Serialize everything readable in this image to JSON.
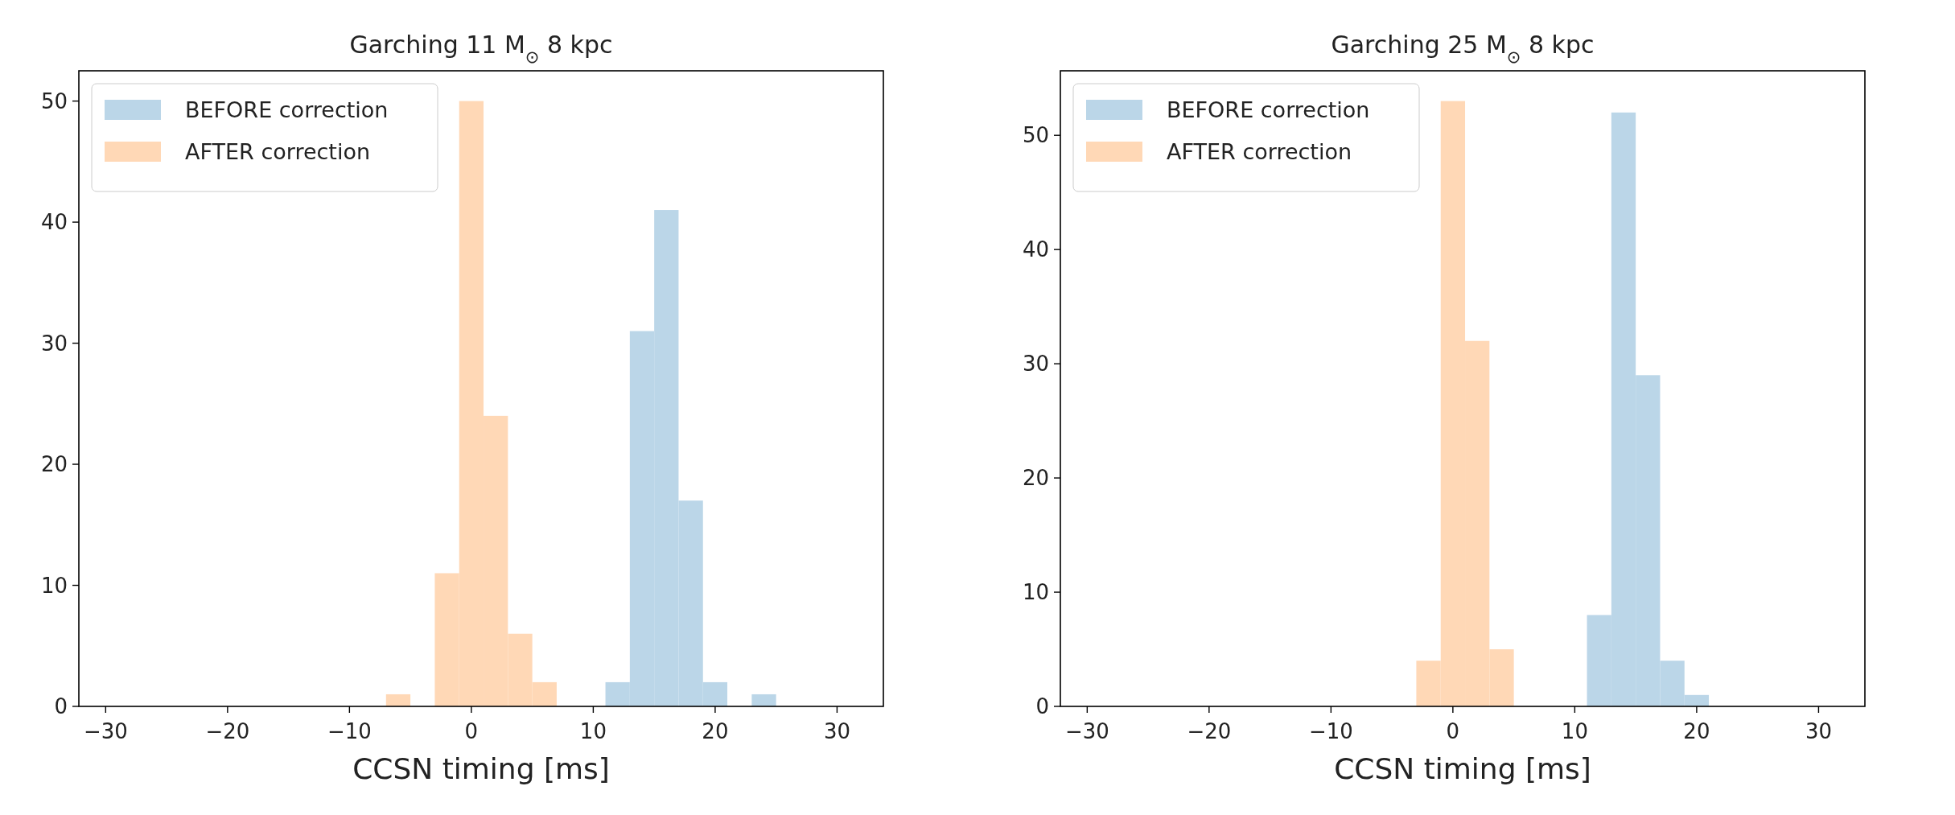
{
  "chart_data": [
    {
      "type": "histogram",
      "title": "Garching 11 M$_{⊙}$ 8 kpc",
      "xlabel": "CCSN timing [ms]",
      "xlim": [
        -32.2,
        33.8
      ],
      "xticks": [
        {
          "value": -30,
          "label": "−30"
        },
        {
          "value": -20,
          "label": "−20"
        },
        {
          "value": -10,
          "label": "−10"
        },
        0,
        10,
        20,
        30
      ],
      "ylim": [
        0,
        52.5
      ],
      "yticks": [
        0,
        10,
        20,
        30,
        40,
        50
      ],
      "legend": "top left",
      "bins": [
        -7,
        -5,
        -3,
        -1,
        1,
        3,
        5,
        7,
        9,
        11,
        13,
        15,
        17,
        19,
        21,
        23,
        25
      ],
      "series": [
        {
          "name": "BEFORE correction",
          "color": "#bbd6e8",
          "values": [
            0,
            0,
            0,
            0,
            0,
            0,
            0,
            0,
            0,
            2,
            31,
            41,
            17,
            2,
            0,
            1
          ]
        },
        {
          "name": "AFTER correction",
          "color": "#ffd8b6",
          "values": [
            1,
            0,
            11,
            50,
            24,
            6,
            2,
            0,
            0,
            0,
            0,
            0,
            0,
            0,
            0,
            0
          ]
        }
      ]
    },
    {
      "type": "histogram",
      "title": "Garching 25 M$_{⊙}$ 8 kpc",
      "xlabel": "CCSN timing [ms]",
      "xlim": [
        -32.2,
        33.8
      ],
      "xticks": [
        {
          "value": -30,
          "label": "−30"
        },
        {
          "value": -20,
          "label": "−20"
        },
        {
          "value": -10,
          "label": "−10"
        },
        0,
        10,
        20,
        30
      ],
      "ylim": [
        0,
        55.65
      ],
      "yticks": [
        0,
        10,
        20,
        30,
        40,
        50
      ],
      "legend": "top left",
      "bins": [
        -3,
        -1,
        1,
        3,
        5,
        7,
        9,
        11,
        13,
        15,
        17,
        19,
        21
      ],
      "series": [
        {
          "name": "BEFORE correction",
          "color": "#bbd6e8",
          "values": [
            0,
            0,
            0,
            0,
            0,
            0,
            0,
            8,
            52,
            29,
            4,
            1
          ]
        },
        {
          "name": "AFTER correction",
          "color": "#ffd8b6",
          "values": [
            4,
            53,
            32,
            5,
            0,
            0,
            0,
            0,
            0,
            0,
            0,
            0
          ]
        }
      ]
    }
  ]
}
